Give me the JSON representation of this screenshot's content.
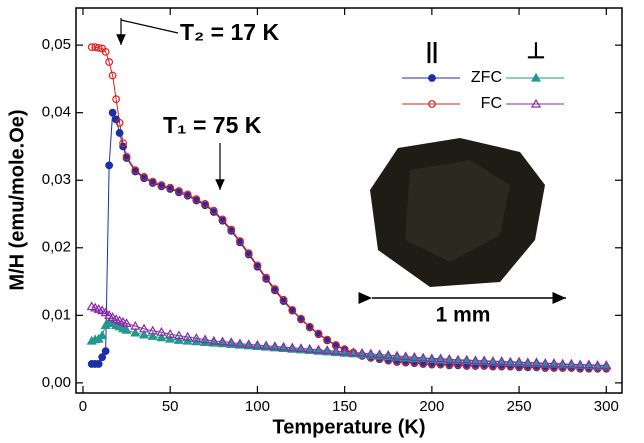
{
  "chart_data": {
    "type": "scatter",
    "x_label": "Temperature (K)",
    "y_label": "M/H (emu/mole.Oe)",
    "x": [
      5,
      7,
      9,
      11,
      13,
      15,
      17,
      19,
      21,
      23,
      25,
      30,
      35,
      40,
      45,
      50,
      55,
      60,
      65,
      70,
      75,
      80,
      85,
      90,
      95,
      100,
      105,
      110,
      115,
      120,
      125,
      130,
      135,
      140,
      145,
      150,
      155,
      160,
      165,
      170,
      175,
      180,
      185,
      190,
      195,
      200,
      205,
      210,
      215,
      220,
      225,
      230,
      235,
      240,
      245,
      250,
      255,
      260,
      265,
      270,
      275,
      280,
      285,
      290,
      295,
      300
    ],
    "series": [
      {
        "color": "#1c2fa8",
        "marker": "circle",
        "filled": true,
        "legend_row": 0,
        "legend_column": 0,
        "values": [
          0.0028,
          0.0028,
          0.0028,
          0.0038,
          0.0047,
          0.0322,
          0.04,
          0.039,
          0.037,
          0.035,
          0.0333,
          0.0313,
          0.0303,
          0.0296,
          0.0291,
          0.0287,
          0.0282,
          0.0277,
          0.027,
          0.0263,
          0.0253,
          0.024,
          0.0225,
          0.0208,
          0.019,
          0.0172,
          0.0154,
          0.0137,
          0.0121,
          0.0107,
          0.0094,
          0.0082,
          0.0072,
          0.0063,
          0.0055,
          0.0049,
          0.0044,
          0.004,
          0.0037,
          0.0035,
          0.0033,
          0.0031,
          0.003,
          0.0029,
          0.0028,
          0.0027,
          0.0027,
          0.0026,
          0.0026,
          0.0025,
          0.0025,
          0.0025,
          0.0024,
          0.0024,
          0.0024,
          0.0023,
          0.0023,
          0.0023,
          0.0022,
          0.0022,
          0.0022,
          0.0022,
          0.0021,
          0.0021,
          0.0021,
          0.0021
        ]
      },
      {
        "color": "#e0201c",
        "marker": "circle",
        "filled": false,
        "legend_row": 1,
        "legend_column": 0,
        "values": [
          0.0497,
          0.0497,
          0.0496,
          0.0495,
          0.049,
          0.0475,
          0.0455,
          0.042,
          0.0385,
          0.0355,
          0.0335,
          0.0315,
          0.0305,
          0.0298,
          0.0293,
          0.0289,
          0.0284,
          0.0279,
          0.0272,
          0.0265,
          0.0255,
          0.0242,
          0.0227,
          0.021,
          0.0192,
          0.0174,
          0.0156,
          0.0139,
          0.0123,
          0.0108,
          0.0095,
          0.0083,
          0.0073,
          0.0064,
          0.0056,
          0.005,
          0.0045,
          0.0041,
          0.0038,
          0.0036,
          0.0034,
          0.0032,
          0.0031,
          0.003,
          0.0029,
          0.0028,
          0.0028,
          0.0027,
          0.0027,
          0.0026,
          0.0026,
          0.0026,
          0.0025,
          0.0025,
          0.0025,
          0.0024,
          0.0024,
          0.0024,
          0.0023,
          0.0023,
          0.0023,
          0.0023,
          0.0022,
          0.0022,
          0.0022,
          0.0022
        ]
      },
      {
        "color": "#22988e",
        "marker": "triangle",
        "filled": true,
        "legend_row": 0,
        "legend_column": 1,
        "values": [
          0.0062,
          0.0064,
          0.0065,
          0.007,
          0.0085,
          0.009,
          0.0088,
          0.0085,
          0.0083,
          0.008,
          0.0078,
          0.0074,
          0.0071,
          0.0069,
          0.0067,
          0.0065,
          0.0063,
          0.0062,
          0.0061,
          0.006,
          0.0059,
          0.0058,
          0.0057,
          0.0056,
          0.0055,
          0.0054,
          0.0053,
          0.0052,
          0.0051,
          0.005,
          0.0049,
          0.0048,
          0.0047,
          0.0046,
          0.0045,
          0.0044,
          0.0043,
          0.0042,
          0.0041,
          0.004,
          0.0039,
          0.0038,
          0.0037,
          0.0036,
          0.0036,
          0.0035,
          0.0034,
          0.0034,
          0.0033,
          0.0033,
          0.0032,
          0.0032,
          0.0031,
          0.0031,
          0.003,
          0.003,
          0.0029,
          0.0029,
          0.0028,
          0.0028,
          0.0027,
          0.0027,
          0.0026,
          0.0026,
          0.0025,
          0.0025
        ]
      },
      {
        "color": "#8a2aa8",
        "marker": "triangle",
        "filled": false,
        "legend_row": 1,
        "legend_column": 1,
        "values": [
          0.0113,
          0.0111,
          0.0109,
          0.0107,
          0.0104,
          0.01,
          0.0097,
          0.0094,
          0.0092,
          0.009,
          0.0088,
          0.0084,
          0.008,
          0.0077,
          0.0075,
          0.0072,
          0.007,
          0.0068,
          0.0066,
          0.0064,
          0.0062,
          0.0061,
          0.006,
          0.0058,
          0.0057,
          0.0056,
          0.0055,
          0.0054,
          0.0053,
          0.0052,
          0.0051,
          0.005,
          0.0049,
          0.0048,
          0.0047,
          0.0046,
          0.0045,
          0.0044,
          0.0043,
          0.0042,
          0.0041,
          0.004,
          0.0039,
          0.0038,
          0.0037,
          0.0036,
          0.0036,
          0.0035,
          0.0034,
          0.0034,
          0.0033,
          0.0033,
          0.0032,
          0.0032,
          0.0031,
          0.0031,
          0.003,
          0.003,
          0.0029,
          0.0029,
          0.0028,
          0.0028,
          0.0027,
          0.0027,
          0.0026,
          0.0026
        ]
      }
    ],
    "legend": {
      "headers": [
        "||",
        "⊥"
      ],
      "rows": [
        "ZFC",
        "FC"
      ]
    },
    "xlim": [
      -4,
      309
    ],
    "ylim": [
      -0.0015,
      0.0555
    ],
    "xticks": [
      0,
      50,
      100,
      150,
      200,
      250,
      300
    ],
    "yticks": [
      {
        "value": 0,
        "label": "0,00"
      },
      {
        "value": 0.01,
        "label": "0,01"
      },
      {
        "value": 0.02,
        "label": "0,02"
      },
      {
        "value": 0.03,
        "label": "0,03"
      },
      {
        "value": 0.04,
        "label": "0,04"
      },
      {
        "value": 0.05,
        "label": "0,05"
      }
    ],
    "annotations": [
      "T₂ = 17 K",
      "T₁ = 75 K",
      "1 mm"
    ]
  }
}
